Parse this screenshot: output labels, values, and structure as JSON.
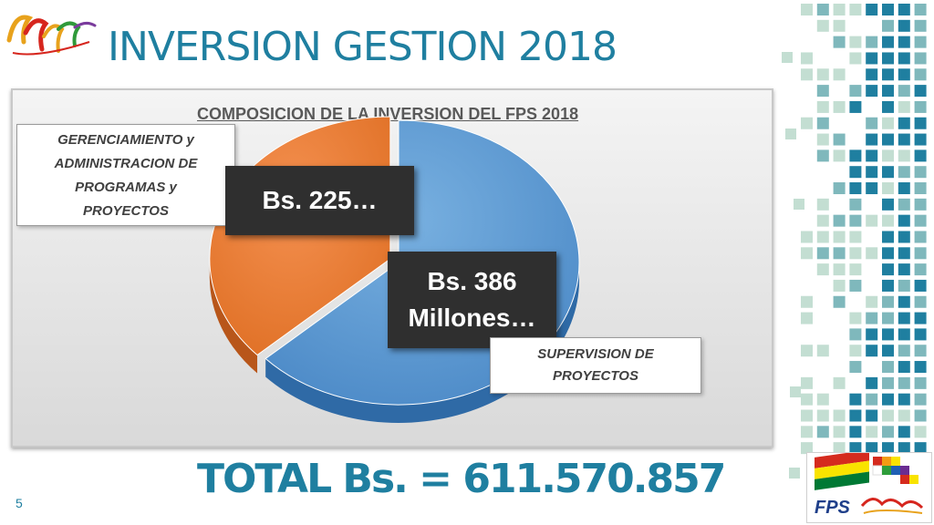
{
  "slide": {
    "title": "INVERSION GESTION 2018",
    "total": "TOTAL Bs.  = 611.570.857",
    "page_number": "5"
  },
  "chart_data": {
    "type": "pie",
    "title": "COMPOSICION DE LA INVERSION DEL FPS 2018",
    "slices": [
      {
        "label": "SUPERVISION DE PROYECTOS",
        "value": 386,
        "display": "Bs. 386 Millones…",
        "color": "#5b9bd5"
      },
      {
        "label": "GERENCIAMIENTO y ADMINISTRACION DE PROGRAMAS y PROYECTOS",
        "value": 225,
        "display": "Bs. 225…",
        "color": "#ed7d31"
      }
    ]
  },
  "callouts": {
    "gerenciamiento": [
      "GERENCIAMIENTO y",
      "ADMINISTRACION DE",
      "PROGRAMAS y",
      "PROYECTOS"
    ],
    "supervision": [
      "SUPERVISION DE",
      "PROYECTOS"
    ]
  },
  "value_labels": {
    "gerenciamiento": "Bs. 225…",
    "supervision": [
      "Bs. 386",
      "Millones…"
    ]
  },
  "logos": {
    "bottom_text": "FPS"
  },
  "colors": {
    "title": "#1f7fa0",
    "teal_dark": "#1f7fa0",
    "teal_mid": "#7fb8bc",
    "teal_light": "#c3ded2",
    "slice_blue": "#5b9bd5",
    "slice_orange": "#ed7d31"
  }
}
